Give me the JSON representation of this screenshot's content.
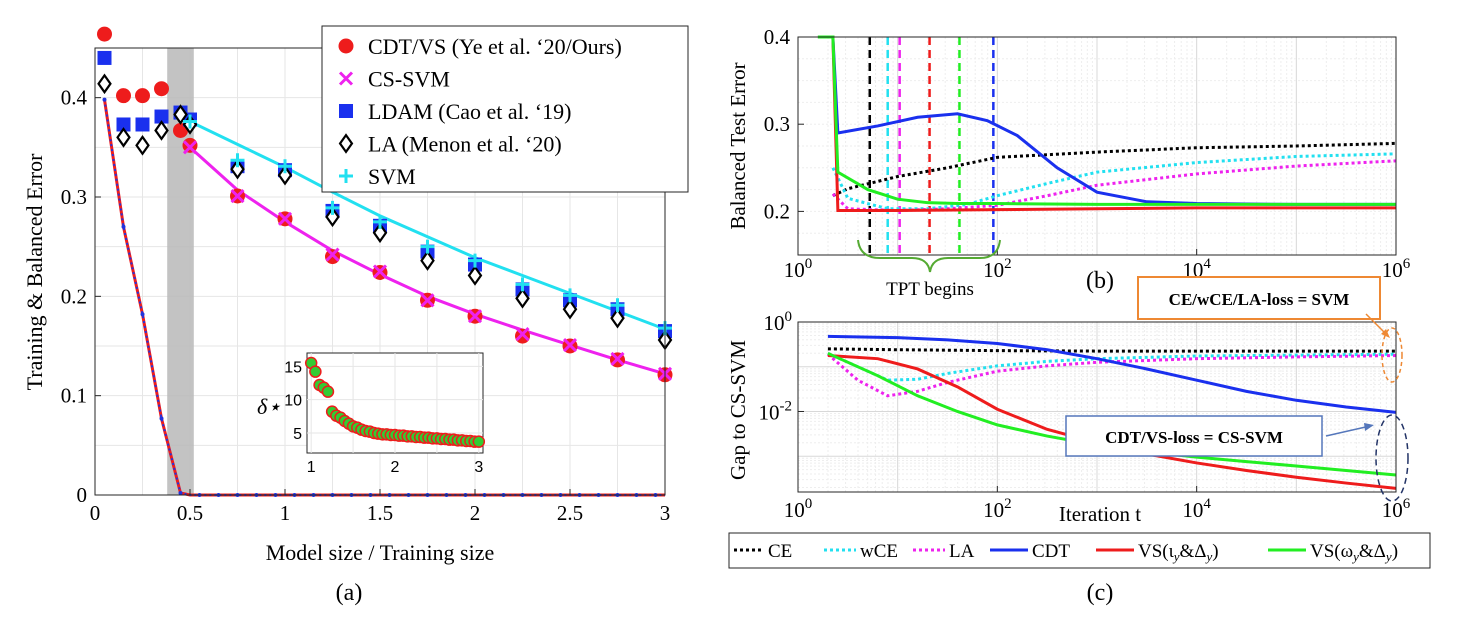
{
  "chart_data": [
    {
      "panel": "a",
      "type": "scatter",
      "caption": "(a)",
      "xlabel": "Model size / Training size",
      "ylabel": "Training & Balanced Error",
      "xlim": [
        0,
        3
      ],
      "ylim": [
        0,
        0.45
      ],
      "xticks": [
        "0",
        "0.5",
        "1",
        "1.5",
        "2",
        "2.5",
        "3"
      ],
      "yticks": [
        "0",
        "0.1",
        "0.2",
        "0.3",
        "0.4"
      ],
      "grid": true,
      "legend_position": "top-right",
      "shaded_region": [
        0.38,
        0.52
      ],
      "series": [
        {
          "name": "CDT/VS (Ye et al. ‘20/Ours)",
          "marker": "circle",
          "color": "#ee1c1c",
          "x": [
            0.05,
            0.15,
            0.25,
            0.35,
            0.45,
            0.5,
            0.75,
            1.0,
            1.25,
            1.5,
            1.75,
            2.0,
            2.25,
            2.5,
            2.75,
            3.0
          ],
          "y": [
            0.464,
            0.402,
            0.402,
            0.409,
            0.367,
            0.352,
            0.301,
            0.278,
            0.24,
            0.224,
            0.196,
            0.18,
            0.16,
            0.15,
            0.136,
            0.121
          ]
        },
        {
          "name": "CS-SVM",
          "marker": "x",
          "color": "#ee22ee",
          "x": [
            0.5,
            0.75,
            1.0,
            1.25,
            1.5,
            1.75,
            2.0,
            2.25,
            2.5,
            2.75,
            3.0
          ],
          "y": [
            0.35,
            0.301,
            0.278,
            0.242,
            0.225,
            0.196,
            0.18,
            0.162,
            0.151,
            0.137,
            0.122
          ]
        },
        {
          "name": "LDAM (Cao et al. ‘19)",
          "marker": "square",
          "color": "#1a30ee",
          "x": [
            0.05,
            0.15,
            0.25,
            0.35,
            0.45,
            0.5,
            0.75,
            1.0,
            1.25,
            1.5,
            1.75,
            2.0,
            2.25,
            2.5,
            2.75,
            3.0
          ],
          "y": [
            0.44,
            0.373,
            0.373,
            0.381,
            0.385,
            0.378,
            0.331,
            0.327,
            0.286,
            0.271,
            0.245,
            0.232,
            0.207,
            0.196,
            0.187,
            0.165
          ]
        },
        {
          "name": "LA (Menon et al. ‘20)",
          "marker": "diamond",
          "color": "#000000",
          "x": [
            0.05,
            0.15,
            0.25,
            0.35,
            0.45,
            0.5,
            0.75,
            1.0,
            1.25,
            1.5,
            1.75,
            2.0,
            2.25,
            2.5,
            2.75,
            3.0
          ],
          "y": [
            0.414,
            0.36,
            0.352,
            0.367,
            0.383,
            0.373,
            0.328,
            0.322,
            0.28,
            0.264,
            0.236,
            0.221,
            0.198,
            0.187,
            0.178,
            0.156
          ]
        },
        {
          "name": "SVM",
          "marker": "plus",
          "color": "#22e0f0",
          "x": [
            0.5,
            0.75,
            1.0,
            1.25,
            1.5,
            1.75,
            2.0,
            2.25,
            2.5,
            2.75,
            3.0
          ],
          "y": [
            0.376,
            0.337,
            0.331,
            0.289,
            0.275,
            0.25,
            0.236,
            0.212,
            0.201,
            0.191,
            0.168
          ]
        }
      ],
      "fit_curves": [
        {
          "name": "CS-SVM theory",
          "color": "#ee22ee",
          "x": [
            0.5,
            0.75,
            1.0,
            1.25,
            1.5,
            1.75,
            2.0,
            2.25,
            2.5,
            2.75,
            3.0
          ],
          "y": [
            0.35,
            0.307,
            0.275,
            0.246,
            0.222,
            0.2,
            0.182,
            0.166,
            0.151,
            0.136,
            0.122
          ]
        },
        {
          "name": "SVM theory",
          "color": "#22e0f0",
          "x": [
            0.5,
            0.75,
            1.0,
            1.25,
            1.5,
            1.75,
            2.0,
            2.25,
            2.5,
            2.75,
            3.0
          ],
          "y": [
            0.376,
            0.353,
            0.33,
            0.305,
            0.281,
            0.26,
            0.239,
            0.221,
            0.203,
            0.185,
            0.167
          ]
        },
        {
          "name": "Training error",
          "color": "#3333cc",
          "x": [
            0.05,
            0.15,
            0.25,
            0.35,
            0.45,
            0.5,
            1.0,
            1.5,
            2.0,
            2.5,
            3.0
          ],
          "y": [
            0.398,
            0.27,
            0.182,
            0.077,
            0.002,
            0,
            0,
            0,
            0,
            0,
            0
          ]
        }
      ],
      "inset": {
        "ylabel": "δ⋆",
        "xlim": [
          0.95,
          3.05
        ],
        "ylim": [
          2,
          17
        ],
        "xticks": [
          "1",
          "2",
          "3"
        ],
        "yticks": [
          "5",
          "10",
          "15"
        ],
        "marker_color": "#33cc33",
        "edge_color": "#ee1c1c",
        "x": [
          1.0,
          1.05,
          1.1,
          1.15,
          1.2,
          1.25,
          1.3,
          1.35,
          1.4,
          1.45,
          1.5,
          1.55,
          1.6,
          1.65,
          1.7,
          1.75,
          1.8,
          1.85,
          1.9,
          1.95,
          2.0,
          2.05,
          2.1,
          2.15,
          2.2,
          2.25,
          2.3,
          2.35,
          2.4,
          2.45,
          2.5,
          2.55,
          2.6,
          2.65,
          2.7,
          2.75,
          2.8,
          2.85,
          2.9,
          2.95,
          3.0
        ],
        "y": [
          15.5,
          14.2,
          12.2,
          11.8,
          11.2,
          8.2,
          7.6,
          7.3,
          6.8,
          6.4,
          6.0,
          5.8,
          5.5,
          5.3,
          5.2,
          5.0,
          4.9,
          4.8,
          4.8,
          4.7,
          4.7,
          4.6,
          4.6,
          4.5,
          4.5,
          4.4,
          4.4,
          4.3,
          4.3,
          4.2,
          4.2,
          4.1,
          4.1,
          4.0,
          4.0,
          3.9,
          3.9,
          3.8,
          3.8,
          3.7,
          3.7
        ]
      }
    },
    {
      "panel": "b",
      "type": "line",
      "caption": "(b)",
      "xlabel": "",
      "ylabel": "Balanced Test Error",
      "xscale": "log",
      "xlim_log10": [
        0,
        6
      ],
      "ylim": [
        0.15,
        0.4
      ],
      "xticks": [
        "10^0",
        "10^2",
        "10^4",
        "10^6"
      ],
      "yticks": [
        "0.2",
        "0.3",
        "0.4"
      ],
      "annotation": "TPT begins",
      "tpt_markers": [
        {
          "series": "CE",
          "iteration_log10": 0.72,
          "color": "#000000"
        },
        {
          "series": "wCE",
          "iteration_log10": 0.9,
          "color": "#22e0f0"
        },
        {
          "series": "LA",
          "iteration_log10": 1.02,
          "color": "#ee22ee"
        },
        {
          "series": "VS(ι_y&Δ_y)",
          "iteration_log10": 1.32,
          "color": "#ee1c1c"
        },
        {
          "series": "VS(ω_y&Δ_y)",
          "iteration_log10": 1.62,
          "color": "#22ee22"
        },
        {
          "series": "CDT",
          "iteration_log10": 1.96,
          "color": "#1a30ee"
        }
      ],
      "series": [
        {
          "name": "CE",
          "color": "#000000",
          "dash": "dotted",
          "x_log10": [
            0.35,
            0.5,
            1.0,
            1.5,
            2.0,
            3.0,
            4.0,
            5.0,
            6.0
          ],
          "y": [
            0.218,
            0.226,
            0.24,
            0.25,
            0.262,
            0.268,
            0.273,
            0.275,
            0.278
          ]
        },
        {
          "name": "wCE",
          "color": "#22e0f0",
          "dash": "dotted",
          "x_log10": [
            0.35,
            0.5,
            0.9,
            1.3,
            1.7,
            2.0,
            2.5,
            3.0,
            4.0,
            5.0,
            6.0
          ],
          "y": [
            0.25,
            0.215,
            0.203,
            0.203,
            0.208,
            0.218,
            0.232,
            0.245,
            0.256,
            0.263,
            0.266
          ]
        },
        {
          "name": "LA",
          "color": "#ee22ee",
          "dash": "dotted",
          "x_log10": [
            0.35,
            0.5,
            1.0,
            1.5,
            2.0,
            2.5,
            3.0,
            4.0,
            5.0,
            6.0
          ],
          "y": [
            0.22,
            0.203,
            0.201,
            0.203,
            0.207,
            0.218,
            0.23,
            0.243,
            0.252,
            0.258
          ]
        },
        {
          "name": "CDT",
          "color": "#1a30ee",
          "dash": "solid",
          "x_log10": [
            0.2,
            0.35,
            0.4,
            0.8,
            1.2,
            1.6,
            1.9,
            2.2,
            2.6,
            3.0,
            3.5,
            4.0,
            5.0,
            6.0
          ],
          "y": [
            0.4,
            0.4,
            0.29,
            0.298,
            0.308,
            0.312,
            0.304,
            0.287,
            0.25,
            0.222,
            0.211,
            0.209,
            0.208,
            0.208
          ]
        },
        {
          "name": "VS(ι_y&Δ_y)",
          "color": "#ee1c1c",
          "dash": "solid",
          "x_log10": [
            0.2,
            0.35,
            0.4,
            1.0,
            2.0,
            3.0,
            4.0,
            5.0,
            6.0
          ],
          "y": [
            0.4,
            0.4,
            0.201,
            0.201,
            0.202,
            0.203,
            0.204,
            0.204,
            0.204
          ]
        },
        {
          "name": "VS(ω_y&Δ_y)",
          "color": "#22ee22",
          "dash": "solid",
          "x_log10": [
            0.2,
            0.35,
            0.4,
            0.7,
            1.0,
            1.3,
            1.6,
            2.0,
            3.0,
            4.0,
            5.0,
            6.0
          ],
          "y": [
            0.4,
            0.4,
            0.245,
            0.225,
            0.214,
            0.21,
            0.209,
            0.209,
            0.208,
            0.208,
            0.208,
            0.208
          ]
        }
      ]
    },
    {
      "panel": "c",
      "type": "line",
      "caption": "(c)",
      "xlabel": "Iteration t",
      "ylabel": "Gap to CS-SVM",
      "xscale": "log",
      "yscale": "log",
      "xlim_log10": [
        0,
        6
      ],
      "ylim_log10": [
        -3.8,
        0
      ],
      "xticks": [
        "10^0",
        "10^2",
        "10^4",
        "10^6"
      ],
      "yticks": [
        "10^-2",
        "10^0"
      ],
      "annotations": [
        "CE/wCE/LA-loss = SVM",
        "CDT/VS-loss = CS-SVM"
      ],
      "series": [
        {
          "name": "CE",
          "color": "#000000",
          "dash": "dotted",
          "x_log10": [
            0.3,
            1.0,
            2.0,
            3.0,
            4.0,
            5.0,
            6.0
          ],
          "y_log10": [
            -0.6,
            -0.62,
            -0.64,
            -0.65,
            -0.65,
            -0.65,
            -0.65
          ]
        },
        {
          "name": "wCE",
          "color": "#22e0f0",
          "dash": "dotted",
          "x_log10": [
            0.3,
            0.6,
            0.9,
            1.2,
            1.5,
            2.0,
            2.5,
            3.0,
            4.0,
            5.0,
            6.0
          ],
          "y_log10": [
            -0.7,
            -1.0,
            -1.3,
            -1.28,
            -1.15,
            -0.98,
            -0.88,
            -0.82,
            -0.76,
            -0.74,
            -0.72
          ]
        },
        {
          "name": "LA",
          "color": "#ee22ee",
          "dash": "dotted",
          "x_log10": [
            0.3,
            0.6,
            0.9,
            1.2,
            1.5,
            2.0,
            2.5,
            3.0,
            4.0,
            5.0,
            6.0
          ],
          "y_log10": [
            -0.72,
            -1.3,
            -1.65,
            -1.55,
            -1.35,
            -1.1,
            -0.98,
            -0.9,
            -0.82,
            -0.78,
            -0.75
          ]
        },
        {
          "name": "CDT",
          "color": "#1a30ee",
          "dash": "solid",
          "x_log10": [
            0.3,
            1.0,
            1.5,
            2.0,
            2.5,
            3.0,
            3.5,
            4.0,
            4.5,
            5.0,
            5.5,
            6.0
          ],
          "y_log10": [
            -0.32,
            -0.35,
            -0.4,
            -0.48,
            -0.62,
            -0.82,
            -1.05,
            -1.3,
            -1.55,
            -1.75,
            -1.9,
            -2.02
          ]
        },
        {
          "name": "VS(ι_y&Δ_y)",
          "color": "#ee1c1c",
          "dash": "solid",
          "x_log10": [
            0.3,
            0.8,
            1.2,
            1.6,
            2.0,
            2.5,
            3.0,
            3.5,
            4.0,
            4.5,
            5.0,
            5.5,
            6.0
          ],
          "y_log10": [
            -0.75,
            -0.82,
            -1.05,
            -1.45,
            -1.95,
            -2.4,
            -2.7,
            -2.95,
            -3.15,
            -3.32,
            -3.47,
            -3.6,
            -3.72
          ]
        },
        {
          "name": "VS(ω_y&Δ_y)",
          "color": "#22ee22",
          "dash": "solid",
          "x_log10": [
            0.3,
            0.8,
            1.2,
            1.6,
            2.0,
            2.5,
            3.0,
            3.5,
            4.0,
            4.5,
            5.0,
            5.5,
            6.0
          ],
          "y_log10": [
            -0.7,
            -1.2,
            -1.65,
            -2.0,
            -2.3,
            -2.55,
            -2.75,
            -2.9,
            -3.02,
            -3.12,
            -3.22,
            -3.32,
            -3.42
          ]
        }
      ]
    }
  ],
  "legend_c": [
    "CE",
    "wCE",
    "LA",
    "CDT",
    "VS(ι_y&Δ_y)",
    "VS(ω_y&Δ_y)"
  ]
}
